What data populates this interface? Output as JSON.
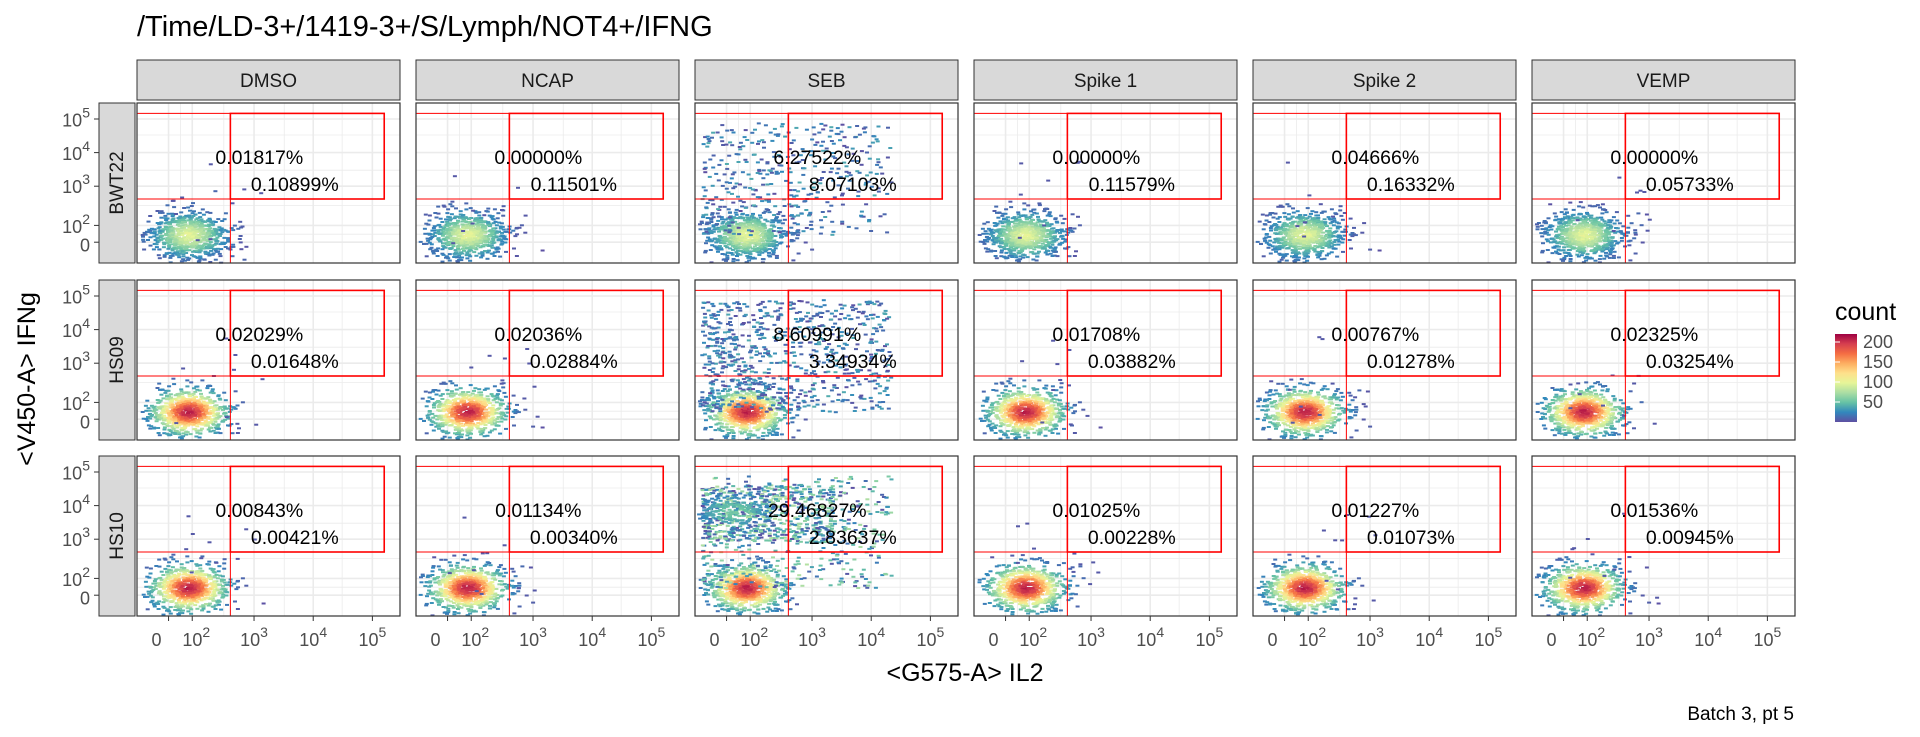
{
  "chart_data": {
    "type": "heatmap",
    "title": "/Time/LD-3+/1419-3+/S/Lymph/NOT4+/IFNG",
    "xlabel": "<G575-A> IL2",
    "ylabel": "<V450-A> IFNg",
    "caption": "Batch 3, pt 5",
    "x_ticks": [
      "0",
      "10^2",
      "10^3",
      "10^4",
      "10^5"
    ],
    "y_ticks": [
      "0",
      "10^2",
      "10^3",
      "10^4",
      "10^5"
    ],
    "columns": [
      "DMSO",
      "NCAP",
      "SEB",
      "Spike 1",
      "Spike 2",
      "VEMP"
    ],
    "rows": [
      "BWT22",
      "HS09",
      "HS10"
    ],
    "legend": {
      "title": "count",
      "ticks": [
        "50",
        "100",
        "150",
        "200"
      ],
      "range": [
        0,
        220
      ],
      "colors": [
        "#5e4fa2",
        "#3288bd",
        "#66c2a5",
        "#abdda4",
        "#e6f598",
        "#fee08b",
        "#fdae61",
        "#f46d43",
        "#d53e4f",
        "#9e0142"
      ]
    },
    "gate_color": "#ff0000",
    "percentages": [
      [
        [
          "0.01817%",
          "0.10899%"
        ],
        [
          "0.00000%",
          "0.11501%"
        ],
        [
          "6.27522%",
          "8.07103%"
        ],
        [
          "0.00000%",
          "0.11579%"
        ],
        [
          "0.04666%",
          "0.16332%"
        ],
        [
          "0.00000%",
          "0.05733%"
        ]
      ],
      [
        [
          "0.02029%",
          "0.01648%"
        ],
        [
          "0.02036%",
          "0.02884%"
        ],
        [
          "8.60991%",
          "3.34934%"
        ],
        [
          "0.01708%",
          "0.03882%"
        ],
        [
          "0.00767%",
          "0.01278%"
        ],
        [
          "0.02325%",
          "0.03254%"
        ]
      ],
      [
        [
          "0.00843%",
          "0.00421%"
        ],
        [
          "0.01134%",
          "0.00340%"
        ],
        [
          "29.46827%",
          "2.83637%"
        ],
        [
          "0.01025%",
          "0.00228%"
        ],
        [
          "0.01227%",
          "0.01073%"
        ],
        [
          "0.01536%",
          "0.00945%"
        ]
      ]
    ]
  }
}
